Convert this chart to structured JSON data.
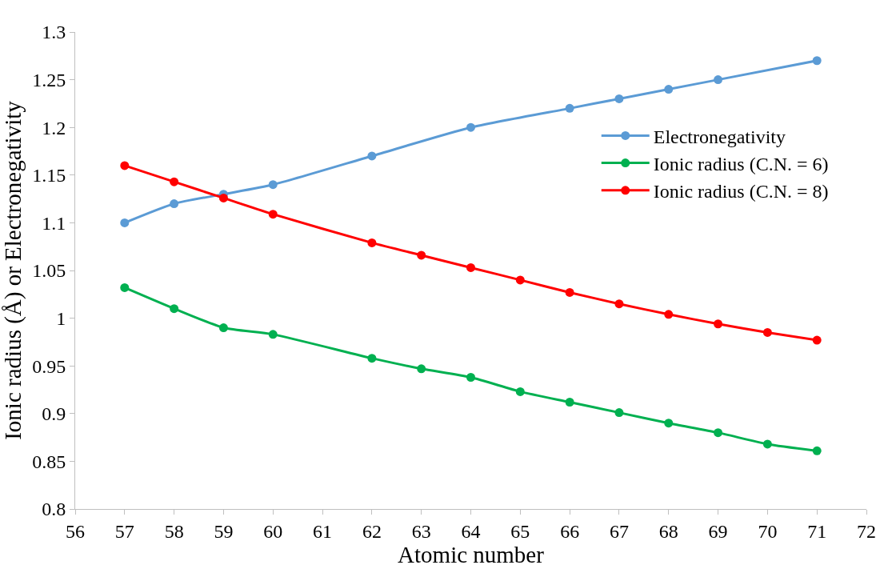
{
  "chart_data": {
    "type": "line",
    "xlabel": "Atomic number",
    "ylabel": "Ionic radius (Å) or Electronegativity",
    "xlim": [
      56,
      72
    ],
    "xticks": [
      56,
      57,
      58,
      59,
      60,
      61,
      62,
      63,
      64,
      65,
      66,
      67,
      68,
      69,
      70,
      71,
      72
    ],
    "ylim": [
      0.8,
      1.3
    ],
    "yticks": [
      {
        "value": 0.8,
        "label": "0.8"
      },
      {
        "value": 0.85,
        "label": "0.85"
      },
      {
        "value": 0.9,
        "label": "0.9"
      },
      {
        "value": 0.95,
        "label": "0.95"
      },
      {
        "value": 1,
        "label": "1"
      },
      {
        "value": 1.05,
        "label": "1.05"
      },
      {
        "value": 1.1,
        "label": "1.1"
      },
      {
        "value": 1.15,
        "label": "1.15"
      },
      {
        "value": 1.2,
        "label": "1.2"
      },
      {
        "value": 1.25,
        "label": "1.25"
      },
      {
        "value": 1.3,
        "label": "1.3"
      }
    ],
    "legend": "right",
    "marker": "circle",
    "line_style": "solid",
    "series": [
      {
        "name": "Electronegativity",
        "color": "#5b9bd5",
        "x": [
          57,
          58,
          59,
          60,
          62,
          64,
          66,
          67,
          68,
          69,
          71
        ],
        "values": [
          1.1,
          1.12,
          1.13,
          1.14,
          1.17,
          1.2,
          1.22,
          1.23,
          1.24,
          1.25,
          1.27
        ]
      },
      {
        "name": "Ionic radius (C.N. = 6)",
        "color": "#00b050",
        "x": [
          57,
          58,
          59,
          60,
          62,
          63,
          64,
          65,
          66,
          67,
          68,
          69,
          70,
          71
        ],
        "values": [
          1.032,
          1.01,
          0.99,
          0.983,
          0.958,
          0.947,
          0.938,
          0.923,
          0.912,
          0.901,
          0.89,
          0.88,
          0.868,
          0.861
        ]
      },
      {
        "name": "Ionic radius (C.N. = 8)",
        "color": "#ff0000",
        "x": [
          57,
          58,
          59,
          60,
          62,
          63,
          64,
          65,
          66,
          67,
          68,
          69,
          70,
          71
        ],
        "values": [
          1.16,
          1.143,
          1.126,
          1.109,
          1.079,
          1.066,
          1.053,
          1.04,
          1.027,
          1.015,
          1.004,
          0.994,
          0.985,
          0.977
        ]
      }
    ]
  }
}
